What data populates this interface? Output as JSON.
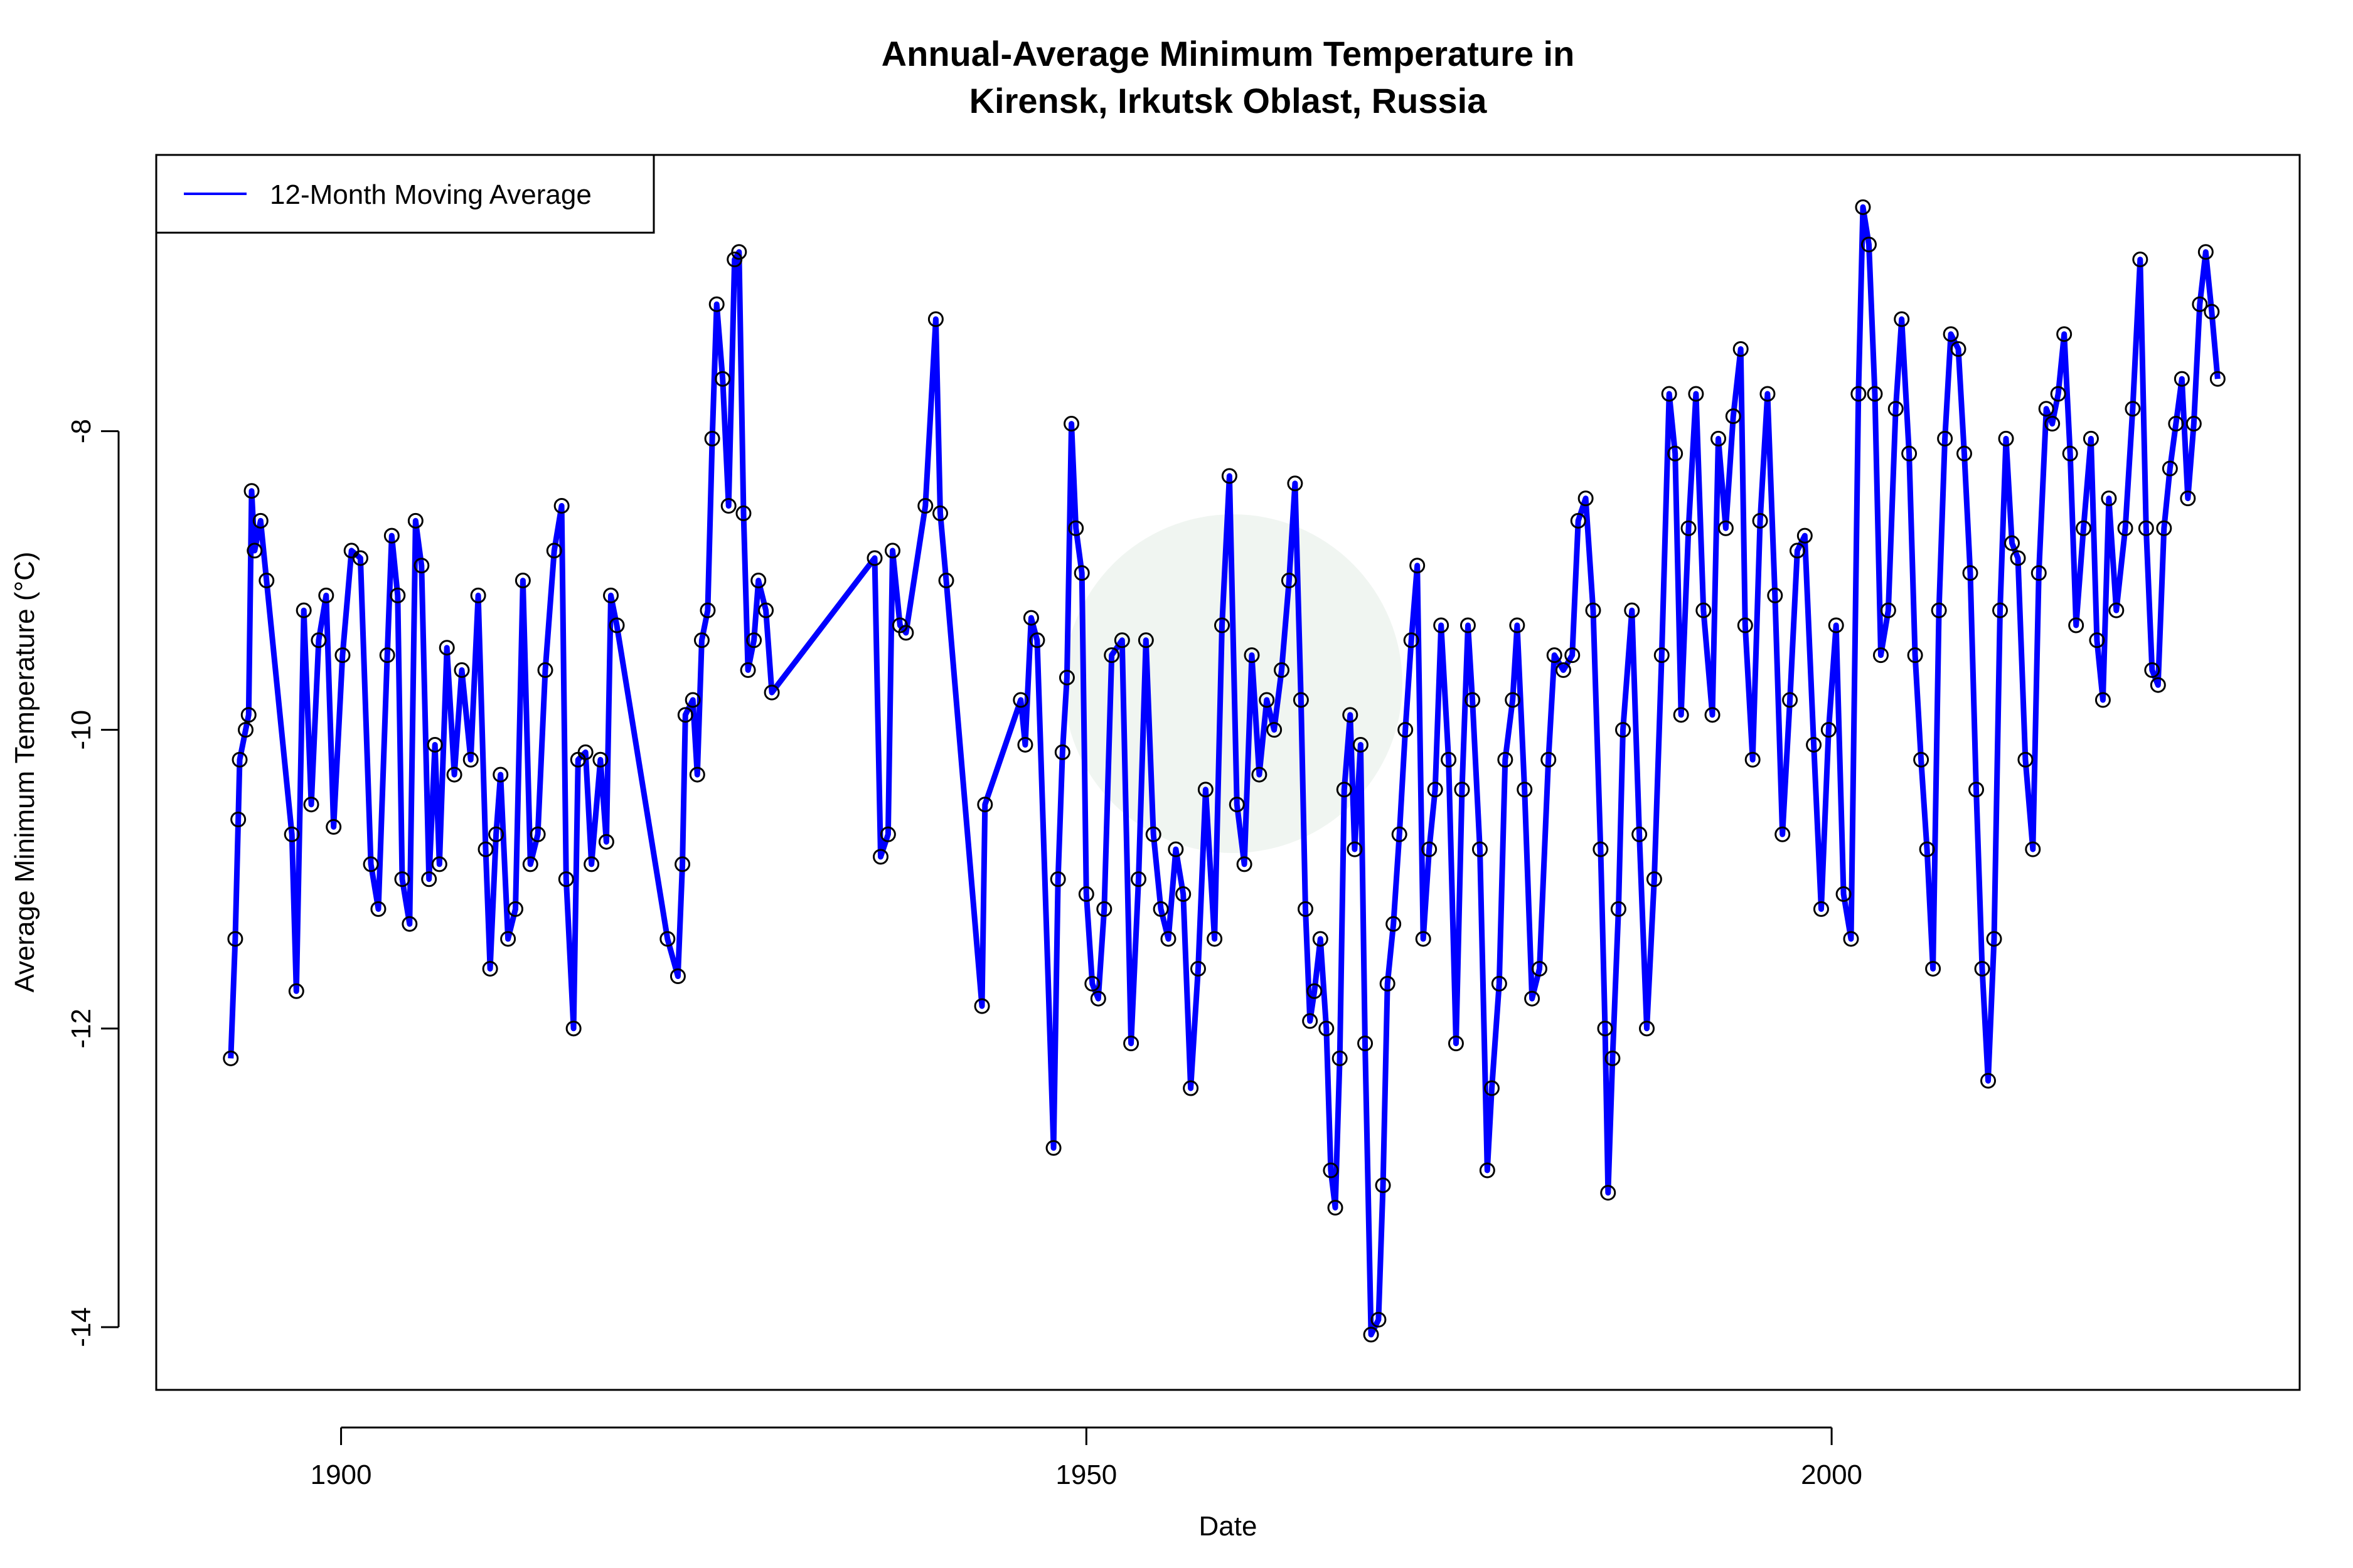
{
  "chart_data": {
    "type": "line",
    "title": [
      "Annual-Average Minimum Temperature in",
      "Kirensk, Irkutsk Oblast, Russia"
    ],
    "xlabel": "Date",
    "ylabel": "Average Minimum Temperature (°C)",
    "xlim": [
      1887.6,
      2031.4
    ],
    "ylim": [
      -14.42,
      -6.15
    ],
    "xticks": [
      1900,
      1950,
      2000
    ],
    "xtick_labels": [
      "1900",
      "1950",
      "2000"
    ],
    "yticks": [
      -8,
      -10,
      -12,
      -14
    ],
    "ytick_labels": [
      "-8",
      "-10",
      "-12",
      "-14"
    ],
    "grid": false,
    "legend": {
      "position": "top-left",
      "entries": [
        "12-Month Moving Average"
      ]
    },
    "colors": {
      "line": "#0000ff",
      "points": "#000000"
    },
    "series": [
      {
        "name": "12-Month Moving Average",
        "points": [
          [
            1892.6,
            -12.2
          ],
          [
            1892.9,
            -11.4
          ],
          [
            1893.1,
            -10.6
          ],
          [
            1893.2,
            -10.2
          ],
          [
            1893.6,
            -10.0
          ],
          [
            1893.8,
            -9.9
          ],
          [
            1894.0,
            -8.4
          ],
          [
            1894.2,
            -8.8
          ],
          [
            1894.6,
            -8.6
          ],
          [
            1895.0,
            -9.0
          ],
          [
            1896.7,
            -10.7
          ],
          [
            1897.0,
            -11.75
          ],
          [
            1897.5,
            -9.2
          ],
          [
            1898.0,
            -10.5
          ],
          [
            1898.5,
            -9.4
          ],
          [
            1899.0,
            -9.1
          ],
          [
            1899.5,
            -10.65
          ],
          [
            1900.1,
            -9.5
          ],
          [
            1900.7,
            -8.8
          ],
          [
            1901.3,
            -8.85
          ],
          [
            1902.0,
            -10.9
          ],
          [
            1902.5,
            -11.2
          ],
          [
            1903.1,
            -9.5
          ],
          [
            1903.4,
            -8.7
          ],
          [
            1903.8,
            -9.1
          ],
          [
            1904.1,
            -11.0
          ],
          [
            1904.6,
            -11.3
          ],
          [
            1905.0,
            -8.6
          ],
          [
            1905.4,
            -8.9
          ],
          [
            1905.9,
            -11.0
          ],
          [
            1906.3,
            -10.1
          ],
          [
            1906.6,
            -10.9
          ],
          [
            1907.1,
            -9.45
          ],
          [
            1907.6,
            -10.3
          ],
          [
            1908.1,
            -9.6
          ],
          [
            1908.7,
            -10.2
          ],
          [
            1909.2,
            -9.1
          ],
          [
            1909.7,
            -10.8
          ],
          [
            1910.0,
            -11.6
          ],
          [
            1910.4,
            -10.7
          ],
          [
            1910.7,
            -10.3
          ],
          [
            1911.2,
            -11.4
          ],
          [
            1911.7,
            -11.2
          ],
          [
            1912.2,
            -9.0
          ],
          [
            1912.7,
            -10.9
          ],
          [
            1913.2,
            -10.7
          ],
          [
            1913.7,
            -9.6
          ],
          [
            1914.3,
            -8.8
          ],
          [
            1914.8,
            -8.5
          ],
          [
            1915.1,
            -11.0
          ],
          [
            1915.6,
            -12.0
          ],
          [
            1915.9,
            -10.2
          ],
          [
            1916.4,
            -10.15
          ],
          [
            1916.8,
            -10.9
          ],
          [
            1917.4,
            -10.2
          ],
          [
            1917.8,
            -10.75
          ],
          [
            1918.1,
            -9.1
          ],
          [
            1918.5,
            -9.3
          ],
          [
            1921.9,
            -11.4
          ],
          [
            1922.6,
            -11.65
          ],
          [
            1922.9,
            -10.9
          ],
          [
            1923.1,
            -9.9
          ],
          [
            1923.6,
            -9.8
          ],
          [
            1923.9,
            -10.3
          ],
          [
            1924.2,
            -9.4
          ],
          [
            1924.6,
            -9.2
          ],
          [
            1924.9,
            -8.05
          ],
          [
            1925.2,
            -7.15
          ],
          [
            1925.6,
            -7.65
          ],
          [
            1926.0,
            -8.5
          ],
          [
            1926.4,
            -6.85
          ],
          [
            1926.7,
            -6.8
          ],
          [
            1927.0,
            -8.55
          ],
          [
            1927.3,
            -9.6
          ],
          [
            1927.7,
            -9.4
          ],
          [
            1928.0,
            -9.0
          ],
          [
            1928.5,
            -9.2
          ],
          [
            1928.9,
            -9.75
          ],
          [
            1935.8,
            -8.85
          ],
          [
            1936.2,
            -10.85
          ],
          [
            1936.7,
            -10.7
          ],
          [
            1937.0,
            -8.8
          ],
          [
            1937.5,
            -9.3
          ],
          [
            1937.9,
            -9.35
          ],
          [
            1939.2,
            -8.5
          ],
          [
            1939.9,
            -7.25
          ],
          [
            1940.2,
            -8.55
          ],
          [
            1940.6,
            -9.0
          ],
          [
            1943.0,
            -11.85
          ],
          [
            1943.2,
            -10.5
          ],
          [
            1945.6,
            -9.8
          ],
          [
            1945.9,
            -10.1
          ],
          [
            1946.3,
            -9.25
          ],
          [
            1946.7,
            -9.4
          ],
          [
            1947.8,
            -12.8
          ],
          [
            1948.1,
            -11.0
          ],
          [
            1948.4,
            -10.15
          ],
          [
            1948.7,
            -9.65
          ],
          [
            1949.0,
            -7.95
          ],
          [
            1949.3,
            -8.65
          ],
          [
            1949.7,
            -8.95
          ],
          [
            1950.0,
            -11.1
          ],
          [
            1950.4,
            -11.7
          ],
          [
            1950.8,
            -11.8
          ],
          [
            1951.2,
            -11.2
          ],
          [
            1951.7,
            -9.5
          ],
          [
            1952.4,
            -9.4
          ],
          [
            1953.0,
            -12.1
          ],
          [
            1953.5,
            -11.0
          ],
          [
            1954.0,
            -9.4
          ],
          [
            1954.5,
            -10.7
          ],
          [
            1955.0,
            -11.2
          ],
          [
            1955.5,
            -11.4
          ],
          [
            1956.0,
            -10.8
          ],
          [
            1956.5,
            -11.1
          ],
          [
            1957.0,
            -12.4
          ],
          [
            1957.5,
            -11.6
          ],
          [
            1958.0,
            -10.4
          ],
          [
            1958.6,
            -11.4
          ],
          [
            1959.1,
            -9.3
          ],
          [
            1959.6,
            -8.3
          ],
          [
            1960.1,
            -10.5
          ],
          [
            1960.6,
            -10.9
          ],
          [
            1961.1,
            -9.5
          ],
          [
            1961.6,
            -10.3
          ],
          [
            1962.1,
            -9.8
          ],
          [
            1962.6,
            -10.0
          ],
          [
            1963.1,
            -9.6
          ],
          [
            1963.6,
            -9.0
          ],
          [
            1964.0,
            -8.35
          ],
          [
            1964.4,
            -9.8
          ],
          [
            1964.7,
            -11.2
          ],
          [
            1965.0,
            -11.95
          ],
          [
            1965.3,
            -11.75
          ],
          [
            1965.7,
            -11.4
          ],
          [
            1966.1,
            -12.0
          ],
          [
            1966.4,
            -12.95
          ],
          [
            1966.7,
            -13.2
          ],
          [
            1967.0,
            -12.2
          ],
          [
            1967.3,
            -10.4
          ],
          [
            1967.7,
            -9.9
          ],
          [
            1968.0,
            -10.8
          ],
          [
            1968.4,
            -10.1
          ],
          [
            1968.7,
            -12.1
          ],
          [
            1969.1,
            -14.05
          ],
          [
            1969.6,
            -13.95
          ],
          [
            1969.9,
            -13.05
          ],
          [
            1970.2,
            -11.7
          ],
          [
            1970.6,
            -11.3
          ],
          [
            1971.0,
            -10.7
          ],
          [
            1971.4,
            -10.0
          ],
          [
            1971.8,
            -9.4
          ],
          [
            1972.2,
            -8.9
          ],
          [
            1972.6,
            -11.4
          ],
          [
            1973.0,
            -10.8
          ],
          [
            1973.4,
            -10.4
          ],
          [
            1973.8,
            -9.3
          ],
          [
            1974.3,
            -10.2
          ],
          [
            1974.8,
            -12.1
          ],
          [
            1975.2,
            -10.4
          ],
          [
            1975.6,
            -9.3
          ],
          [
            1975.9,
            -9.8
          ],
          [
            1976.4,
            -10.8
          ],
          [
            1976.9,
            -12.95
          ],
          [
            1977.2,
            -12.4
          ],
          [
            1977.7,
            -11.7
          ],
          [
            1978.1,
            -10.2
          ],
          [
            1978.6,
            -9.8
          ],
          [
            1978.9,
            -9.3
          ],
          [
            1979.4,
            -10.4
          ],
          [
            1979.9,
            -11.8
          ],
          [
            1980.4,
            -11.6
          ],
          [
            1981.0,
            -10.2
          ],
          [
            1981.4,
            -9.5
          ],
          [
            1982.0,
            -9.6
          ],
          [
            1982.6,
            -9.5
          ],
          [
            1983.0,
            -8.6
          ],
          [
            1983.5,
            -8.45
          ],
          [
            1984.0,
            -9.2
          ],
          [
            1984.5,
            -10.8
          ],
          [
            1984.8,
            -12.0
          ],
          [
            1985.0,
            -13.1
          ],
          [
            1985.3,
            -12.2
          ],
          [
            1985.7,
            -11.2
          ],
          [
            1986.0,
            -10.0
          ],
          [
            1986.6,
            -9.2
          ],
          [
            1987.1,
            -10.7
          ],
          [
            1987.6,
            -12.0
          ],
          [
            1988.1,
            -11.0
          ],
          [
            1988.6,
            -9.5
          ],
          [
            1989.1,
            -7.75
          ],
          [
            1989.5,
            -8.15
          ],
          [
            1989.9,
            -9.9
          ],
          [
            1990.4,
            -8.65
          ],
          [
            1990.9,
            -7.75
          ],
          [
            1991.4,
            -9.2
          ],
          [
            1992.0,
            -9.9
          ],
          [
            1992.4,
            -8.05
          ],
          [
            1992.9,
            -8.65
          ],
          [
            1993.4,
            -7.9
          ],
          [
            1993.9,
            -7.45
          ],
          [
            1994.2,
            -9.3
          ],
          [
            1994.7,
            -10.2
          ],
          [
            1995.2,
            -8.6
          ],
          [
            1995.7,
            -7.75
          ],
          [
            1996.2,
            -9.1
          ],
          [
            1996.7,
            -10.7
          ],
          [
            1997.2,
            -9.8
          ],
          [
            1997.7,
            -8.8
          ],
          [
            1998.2,
            -8.7
          ],
          [
            1998.8,
            -10.1
          ],
          [
            1999.3,
            -11.2
          ],
          [
            1999.8,
            -10.0
          ],
          [
            2000.3,
            -9.3
          ],
          [
            2000.8,
            -11.1
          ],
          [
            2001.3,
            -11.4
          ],
          [
            2001.8,
            -7.75
          ],
          [
            2002.1,
            -6.5
          ],
          [
            2002.5,
            -6.75
          ],
          [
            2002.9,
            -7.75
          ],
          [
            2003.3,
            -9.5
          ],
          [
            2003.8,
            -9.2
          ],
          [
            2004.3,
            -7.85
          ],
          [
            2004.7,
            -7.25
          ],
          [
            2005.2,
            -8.15
          ],
          [
            2005.6,
            -9.5
          ],
          [
            2006.0,
            -10.2
          ],
          [
            2006.4,
            -10.8
          ],
          [
            2006.8,
            -11.6
          ],
          [
            2007.2,
            -9.2
          ],
          [
            2007.6,
            -8.05
          ],
          [
            2008.0,
            -7.35
          ],
          [
            2008.5,
            -7.45
          ],
          [
            2008.9,
            -8.15
          ],
          [
            2009.3,
            -8.95
          ],
          [
            2009.7,
            -10.4
          ],
          [
            2010.1,
            -11.6
          ],
          [
            2010.5,
            -12.35
          ],
          [
            2010.9,
            -11.4
          ],
          [
            2011.3,
            -9.2
          ],
          [
            2011.7,
            -8.05
          ],
          [
            2012.1,
            -8.75
          ],
          [
            2012.5,
            -8.85
          ],
          [
            2013.0,
            -10.2
          ],
          [
            2013.5,
            -10.8
          ],
          [
            2013.9,
            -8.95
          ],
          [
            2014.4,
            -7.85
          ],
          [
            2014.8,
            -7.95
          ],
          [
            2015.2,
            -7.75
          ],
          [
            2015.6,
            -7.35
          ],
          [
            2016.0,
            -8.15
          ],
          [
            2016.4,
            -9.3
          ],
          [
            2016.9,
            -8.65
          ],
          [
            2017.4,
            -8.05
          ],
          [
            2017.8,
            -9.4
          ],
          [
            2018.2,
            -9.8
          ],
          [
            2018.6,
            -8.45
          ],
          [
            2019.1,
            -9.2
          ],
          [
            2019.7,
            -8.65
          ],
          [
            2020.2,
            -7.85
          ],
          [
            2020.7,
            -6.85
          ],
          [
            2021.1,
            -8.65
          ],
          [
            2021.5,
            -9.6
          ],
          [
            2021.9,
            -9.7
          ],
          [
            2022.3,
            -8.65
          ],
          [
            2022.7,
            -8.25
          ],
          [
            2023.1,
            -7.95
          ],
          [
            2023.5,
            -7.65
          ],
          [
            2023.9,
            -8.45
          ],
          [
            2024.3,
            -7.95
          ],
          [
            2024.7,
            -7.15
          ],
          [
            2025.1,
            -6.8
          ],
          [
            2025.5,
            -7.2
          ],
          [
            2025.9,
            -7.65
          ]
        ]
      }
    ]
  }
}
